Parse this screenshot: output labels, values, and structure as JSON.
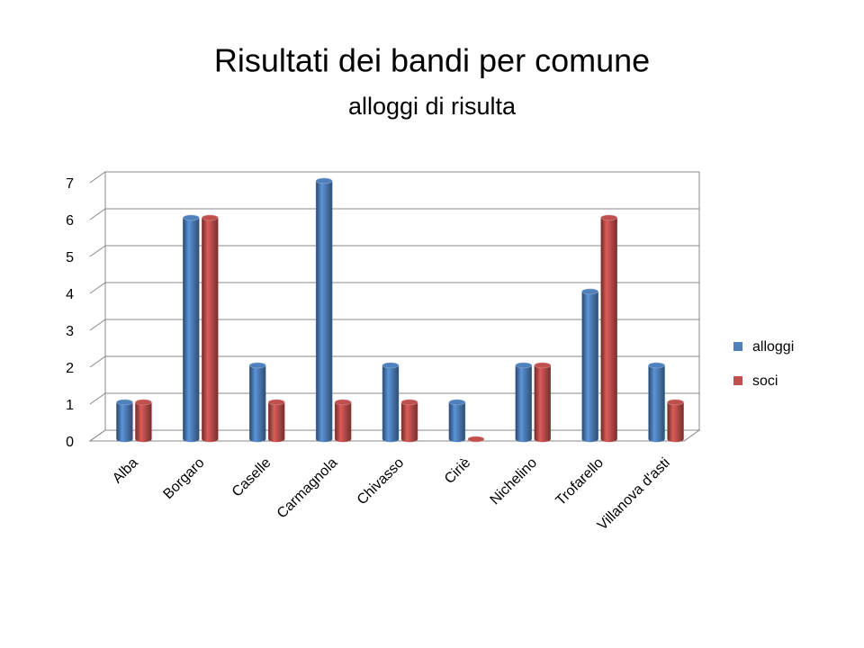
{
  "chart_data": {
    "type": "bar3d",
    "title": "Risultati dei bandi per comune",
    "subtitle": "alloggi di risulta",
    "categories": [
      "Alba",
      "Borgaro",
      "Caselle",
      "Carmagnola",
      "Chivasso",
      "Ciriè",
      "Nichelino",
      "Trofarello",
      "Villanova d'asti"
    ],
    "series": [
      {
        "name": "alloggi",
        "color": "#4f81bd",
        "values": [
          1,
          6,
          2,
          7,
          2,
          1,
          2,
          4,
          2
        ]
      },
      {
        "name": "soci",
        "color": "#c0504d",
        "values": [
          1,
          6,
          1,
          1,
          1,
          0,
          2,
          6,
          1
        ]
      }
    ],
    "ylim": [
      0,
      7
    ],
    "yticks": [
      0,
      1,
      2,
      3,
      4,
      5,
      6,
      7
    ],
    "grid": true,
    "legend": "right"
  }
}
